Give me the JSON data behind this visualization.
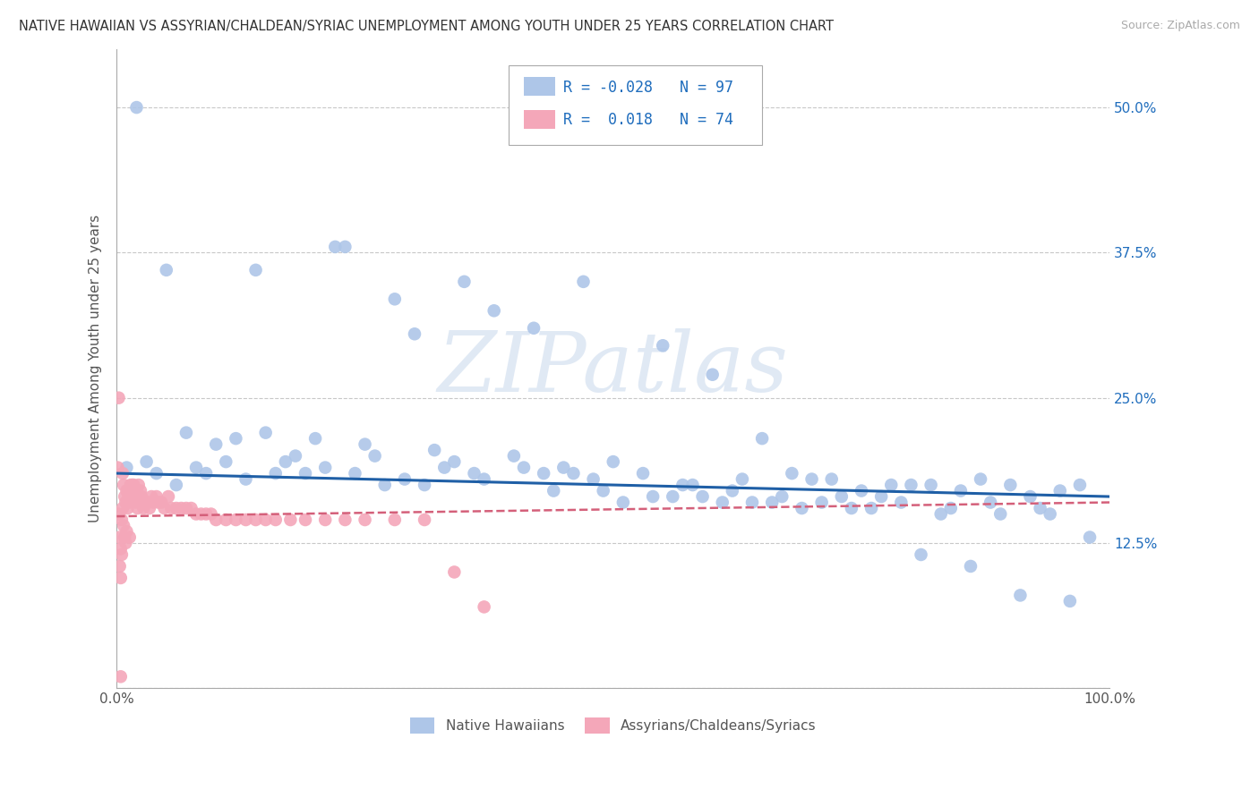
{
  "title": "NATIVE HAWAIIAN VS ASSYRIAN/CHALDEAN/SYRIAC UNEMPLOYMENT AMONG YOUTH UNDER 25 YEARS CORRELATION CHART",
  "source": "Source: ZipAtlas.com",
  "ylabel": "Unemployment Among Youth under 25 years",
  "xlim": [
    0,
    1.0
  ],
  "ylim": [
    0,
    0.55
  ],
  "xticks": [
    0.0,
    0.25,
    0.5,
    0.75,
    1.0
  ],
  "xticklabels": [
    "0.0%",
    "",
    "",
    "",
    "100.0%"
  ],
  "yticks": [
    0.0,
    0.125,
    0.25,
    0.375,
    0.5
  ],
  "right_yticklabels": [
    "",
    "12.5%",
    "25.0%",
    "37.5%",
    "50.0%"
  ],
  "blue_R": -0.028,
  "blue_N": 97,
  "pink_R": 0.018,
  "pink_N": 74,
  "blue_color": "#aec6e8",
  "pink_color": "#f4a7b9",
  "blue_line_color": "#1f5fa6",
  "pink_line_color": "#d4607a",
  "legend_label_blue": "Native Hawaiians",
  "legend_label_pink": "Assyrians/Chaldeans/Syriacs",
  "watermark": "ZIPatlas",
  "background_color": "#ffffff",
  "grid_color": "#c8c8c8",
  "blue_trend_x0": 0.0,
  "blue_trend_y0": 0.185,
  "blue_trend_x1": 1.0,
  "blue_trend_y1": 0.165,
  "pink_trend_x0": 0.0,
  "pink_trend_y0": 0.148,
  "pink_trend_x1": 1.0,
  "pink_trend_y1": 0.16
}
